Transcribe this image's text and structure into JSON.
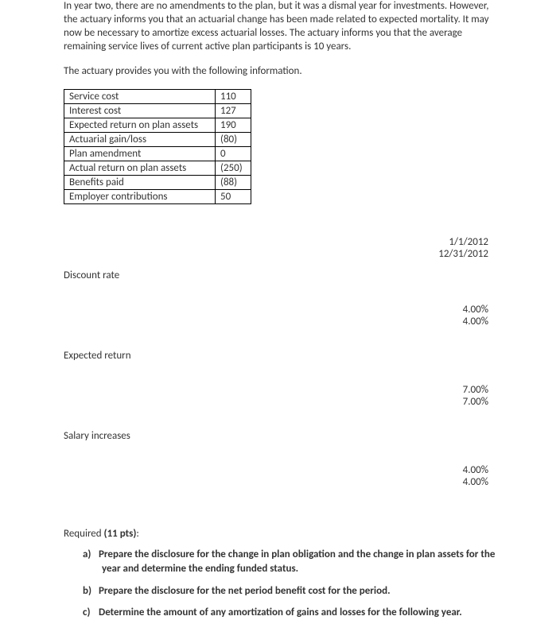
{
  "paragraphs": {
    "p1": "In year two, there are no amendments to the plan, but it was a dismal year for investments. However, the actuary informs you that an actuarial change has been made related to expected mortality. It may now be necessary to amortize excess actuarial losses. The actuary informs you that the average remaining service lives of current active plan participants is 10 years.",
    "p2": "The actuary provides you with the following information."
  },
  "table": {
    "rows": [
      {
        "label": "Service cost",
        "value": "110"
      },
      {
        "label": "Interest cost",
        "value": "127"
      },
      {
        "label": "Expected return on plan assets",
        "value": "190"
      },
      {
        "label": "Actuarial gain/loss",
        "value": "(80)"
      },
      {
        "label": "Plan amendment",
        "value": "0"
      },
      {
        "label": "Actual return on plan assets",
        "value": "(250)"
      },
      {
        "label": "Benefits paid",
        "value": "(88)"
      },
      {
        "label": "Employer contributions",
        "value": "50"
      }
    ]
  },
  "dates": {
    "d1": "1/1/2012",
    "d2": "12/31/2012"
  },
  "assumptions": {
    "discount": {
      "label": "Discount rate",
      "v1": "4.00%",
      "v2": "4.00%"
    },
    "expected": {
      "label": "Expected return",
      "v1": "7.00%",
      "v2": "7.00%"
    },
    "salary": {
      "label": "Salary increases",
      "v1": "4.00%",
      "v2": "4.00%"
    }
  },
  "required": {
    "heading_prefix": "Required ",
    "heading_bold": "(11 pts)",
    "heading_suffix": ":",
    "items": {
      "a_marker": "a)",
      "a_text": "Prepare the disclosure for the change in plan obligation and the change in plan assets for the year and determine the ending funded status.",
      "b_marker": "b)",
      "b_text": "Prepare the disclosure for the net period benefit cost for the period.",
      "c_marker": "c)",
      "c_text": "Determine the amount of any amortization of gains and losses for the following year."
    }
  }
}
